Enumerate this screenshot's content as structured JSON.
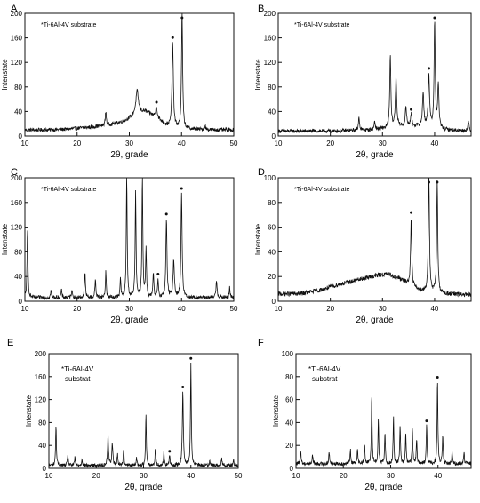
{
  "chart_data": [
    {
      "panel": "A",
      "type": "line",
      "annotation": "*Ti-6Al-4V substrate",
      "xlabel": "2θ, grade",
      "ylabel": "Intenstate",
      "xlim": [
        10,
        50
      ],
      "ylim": [
        0,
        200
      ],
      "xticks": [
        10,
        20,
        30,
        40,
        50
      ],
      "yticks": [
        0,
        40,
        80,
        120,
        160,
        200
      ],
      "base": [
        [
          10,
          10
        ],
        [
          14,
          10
        ],
        [
          18,
          11
        ],
        [
          22,
          14
        ],
        [
          26,
          18
        ],
        [
          29,
          24
        ],
        [
          31,
          34
        ],
        [
          33,
          40
        ],
        [
          35,
          32
        ],
        [
          37,
          18
        ],
        [
          38,
          14
        ],
        [
          40,
          12
        ],
        [
          42,
          11
        ],
        [
          46,
          10
        ],
        [
          50,
          10
        ]
      ],
      "peaks": [
        [
          25.5,
          22,
          0.25
        ],
        [
          31.5,
          38,
          0.6
        ],
        [
          35.2,
          18,
          0.3
        ],
        [
          38.3,
          140,
          0.3
        ],
        [
          40.1,
          190,
          0.25
        ],
        [
          44.5,
          6,
          0.3
        ]
      ],
      "star_peaks": [
        35.2,
        38.3,
        40.1
      ],
      "noise": 3
    },
    {
      "panel": "B",
      "type": "line",
      "annotation": "*Ti-6Al-4V substrate",
      "xlabel": "2θ, grade",
      "ylabel": "Intenstate",
      "xlim": [
        10,
        47
      ],
      "ylim": [
        0,
        200
      ],
      "xticks": [
        10,
        20,
        30,
        40
      ],
      "yticks": [
        0,
        40,
        80,
        120,
        160,
        200
      ],
      "base": [
        [
          10,
          8
        ],
        [
          20,
          8
        ],
        [
          28,
          10
        ],
        [
          34,
          16
        ],
        [
          38,
          16
        ],
        [
          42,
          10
        ],
        [
          47,
          8
        ]
      ],
      "peaks": [
        [
          25.5,
          22,
          0.25
        ],
        [
          28.5,
          14,
          0.25
        ],
        [
          31.5,
          118,
          0.25
        ],
        [
          32.6,
          80,
          0.3
        ],
        [
          34.5,
          30,
          0.3
        ],
        [
          35.5,
          20,
          0.3
        ],
        [
          37.8,
          55,
          0.3
        ],
        [
          38.9,
          86,
          0.3
        ],
        [
          40.0,
          172,
          0.25
        ],
        [
          40.7,
          70,
          0.3
        ],
        [
          46.5,
          14,
          0.3
        ]
      ],
      "star_peaks": [
        35.5,
        38.9,
        40.0
      ],
      "noise": 3
    },
    {
      "panel": "C",
      "type": "line",
      "annotation": "*Ti-6Al-4V substrate",
      "xlabel": "2θ, grade",
      "ylabel": "Intenstate",
      "xlim": [
        10,
        50
      ],
      "ylim": [
        0,
        200
      ],
      "xticks": [
        10,
        20,
        30,
        40,
        50
      ],
      "yticks": [
        0,
        40,
        80,
        120,
        160,
        200
      ],
      "base": [
        [
          10,
          6
        ],
        [
          50,
          6
        ]
      ],
      "peaks": [
        [
          10.5,
          110,
          0.2
        ],
        [
          15,
          12,
          0.2
        ],
        [
          17,
          12,
          0.2
        ],
        [
          19,
          14,
          0.2
        ],
        [
          21.5,
          42,
          0.2
        ],
        [
          23.5,
          30,
          0.2
        ],
        [
          25.5,
          42,
          0.2
        ],
        [
          28.3,
          30,
          0.2
        ],
        [
          29.5,
          200,
          0.2
        ],
        [
          31.2,
          170,
          0.2
        ],
        [
          32.5,
          200,
          0.2
        ],
        [
          33.2,
          80,
          0.2
        ],
        [
          34.6,
          40,
          0.2
        ],
        [
          35.5,
          30,
          0.2
        ],
        [
          37.1,
          128,
          0.25
        ],
        [
          38.5,
          60,
          0.3
        ],
        [
          40.0,
          170,
          0.25
        ],
        [
          46.7,
          28,
          0.25
        ],
        [
          49.2,
          16,
          0.2
        ]
      ],
      "star_peaks": [
        35.5,
        37.1,
        40.0
      ],
      "noise": 3
    },
    {
      "panel": "D",
      "type": "line",
      "annotation": "*Ti-6Al-4V substrate",
      "xlabel": "2θ, grade",
      "ylabel": "Intenstate",
      "xlim": [
        10,
        47
      ],
      "ylim": [
        0,
        100
      ],
      "xticks": [
        10,
        20,
        30,
        40
      ],
      "yticks": [
        0,
        20,
        40,
        60,
        80,
        100
      ],
      "base": [
        [
          10,
          6
        ],
        [
          14,
          6
        ],
        [
          18,
          9
        ],
        [
          22,
          14
        ],
        [
          26,
          18
        ],
        [
          29,
          21
        ],
        [
          31,
          22
        ],
        [
          33,
          19
        ],
        [
          35,
          14
        ],
        [
          37,
          9
        ],
        [
          39,
          7
        ],
        [
          42,
          6
        ],
        [
          47,
          5
        ]
      ],
      "peaks": [
        [
          35.5,
          56,
          0.25
        ],
        [
          38.9,
          100,
          0.25
        ],
        [
          40.5,
          90,
          0.25
        ]
      ],
      "star_peaks": [
        35.5,
        38.9,
        40.5
      ],
      "noise": 1.8
    },
    {
      "panel": "E",
      "type": "line",
      "annotation": "*Ti-6Al-4V substrat",
      "xlabel": "2θ, grade",
      "ylabel": "Intenstate",
      "xlim": [
        10,
        50
      ],
      "ylim": [
        0,
        200
      ],
      "xticks": [
        10,
        20,
        30,
        40,
        50
      ],
      "yticks": [
        0,
        40,
        80,
        120,
        160,
        200
      ],
      "base": [
        [
          10,
          5
        ],
        [
          50,
          5
        ]
      ],
      "peaks": [
        [
          11.5,
          70,
          0.2
        ],
        [
          14,
          20,
          0.2
        ],
        [
          15.5,
          14,
          0.2
        ],
        [
          17,
          12,
          0.2
        ],
        [
          22.5,
          50,
          0.25
        ],
        [
          23.4,
          38,
          0.25
        ],
        [
          24.5,
          20,
          0.2
        ],
        [
          25.8,
          30,
          0.2
        ],
        [
          28.5,
          14,
          0.2
        ],
        [
          30.5,
          90,
          0.2
        ],
        [
          32.5,
          30,
          0.2
        ],
        [
          34.3,
          24,
          0.2
        ],
        [
          35.5,
          18,
          0.2
        ],
        [
          38.3,
          130,
          0.25
        ],
        [
          40.0,
          180,
          0.2
        ],
        [
          44,
          10,
          0.2
        ],
        [
          46.5,
          14,
          0.2
        ],
        [
          49,
          10,
          0.2
        ]
      ],
      "star_peaks": [
        35.5,
        38.3,
        40.0
      ],
      "noise": 3
    },
    {
      "panel": "F",
      "type": "line",
      "annotation": "*Ti-6Al-4V substrat",
      "xlabel": "2θ, grade",
      "ylabel": "Intenstate",
      "xlim": [
        10,
        47
      ],
      "ylim": [
        0,
        100
      ],
      "xticks": [
        10,
        20,
        30,
        40
      ],
      "yticks": [
        0,
        20,
        40,
        60,
        80,
        100
      ],
      "base": [
        [
          10,
          4
        ],
        [
          47,
          4
        ]
      ],
      "peaks": [
        [
          11,
          12,
          0.2
        ],
        [
          13.5,
          8,
          0.2
        ],
        [
          17,
          10,
          0.2
        ],
        [
          21.5,
          12,
          0.2
        ],
        [
          23,
          14,
          0.2
        ],
        [
          24.5,
          16,
          0.2
        ],
        [
          26,
          60,
          0.2
        ],
        [
          27.4,
          38,
          0.2
        ],
        [
          28.8,
          26,
          0.2
        ],
        [
          30.6,
          40,
          0.2
        ],
        [
          32,
          34,
          0.2
        ],
        [
          33.2,
          26,
          0.2
        ],
        [
          34.6,
          30,
          0.2
        ],
        [
          35.5,
          22,
          0.2
        ],
        [
          37.6,
          34,
          0.2
        ],
        [
          39.9,
          72,
          0.2
        ],
        [
          41,
          24,
          0.2
        ],
        [
          43,
          10,
          0.2
        ],
        [
          45.5,
          10,
          0.2
        ]
      ],
      "star_peaks": [
        37.6,
        39.9
      ],
      "noise": 1.6
    }
  ]
}
